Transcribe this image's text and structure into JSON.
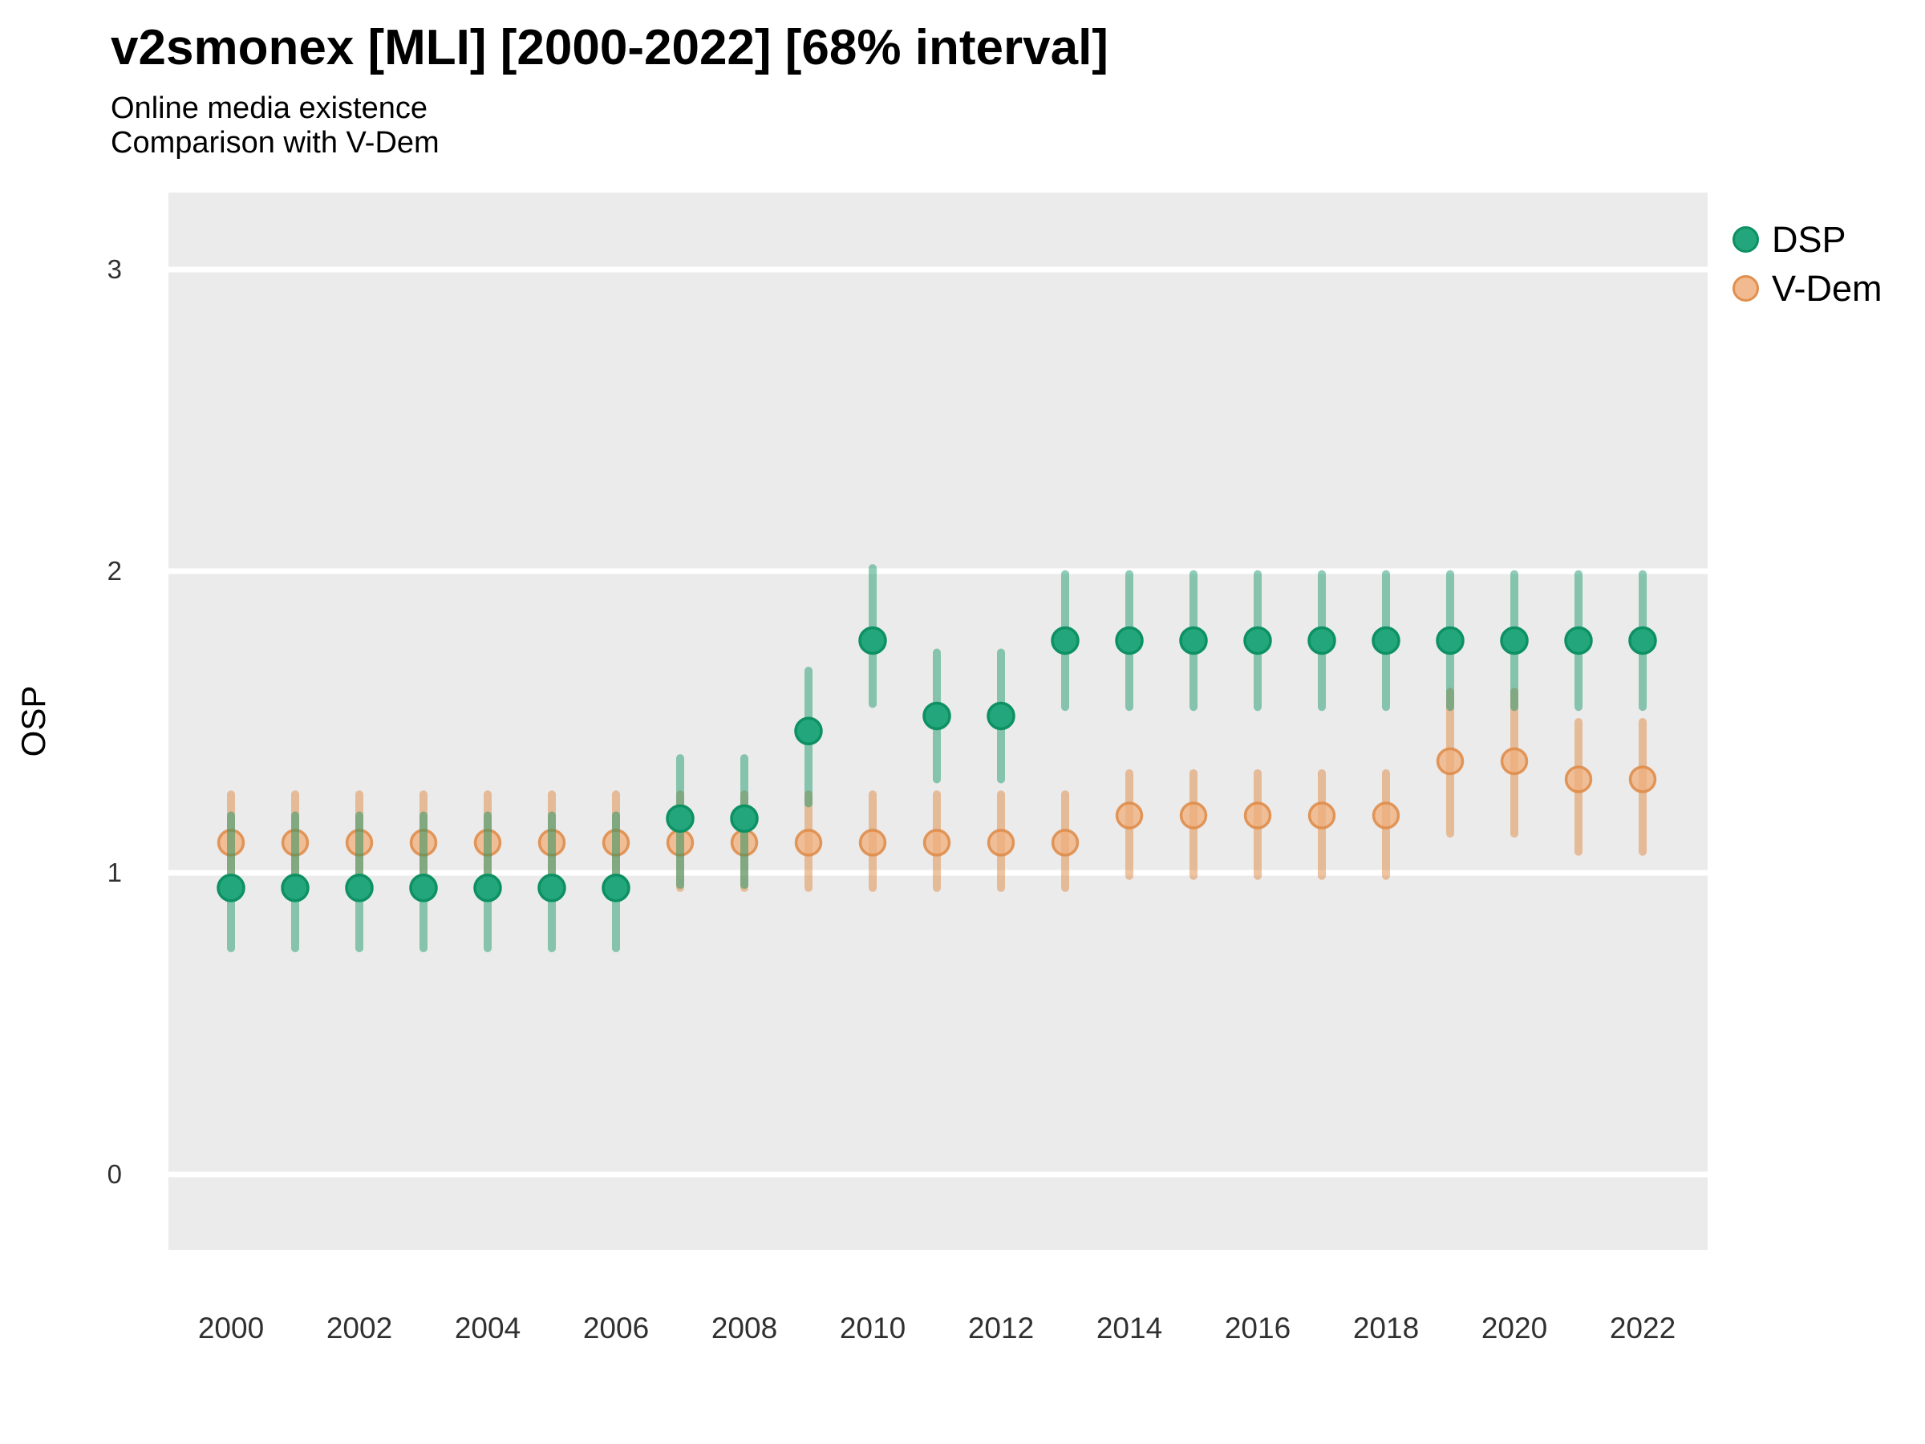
{
  "title": "v2smonex [MLI] [2000-2022] [68% interval]",
  "subtitle1": "Online media existence",
  "subtitle2": "Comparison with V-Dem",
  "ylabel": "OSP",
  "legend": {
    "items": [
      {
        "label": "DSP",
        "fill": "#23A67C",
        "stroke": "#0D9163"
      },
      {
        "label": "V-Dem",
        "fill": "#F2BA90",
        "stroke": "#E0904E"
      }
    ]
  },
  "colors": {
    "panel_bg": "#EBEBEB",
    "gridline": "#FFFFFF",
    "dsp_point_fill": "#23A67C",
    "dsp_point_stroke": "#0D9163",
    "dsp_bar": "rgba(20,150,105,0.48)",
    "vdem_point_fill": "#F0AF7E",
    "vdem_point_stroke": "#DE8A45",
    "vdem_bar": "rgba(224,138,68,0.5)"
  },
  "chart_data": {
    "type": "scatter",
    "title": "v2smonex [MLI] [2000-2022] [68% interval]",
    "subtitle": [
      "Online media existence",
      "Comparison with V-Dem"
    ],
    "xlabel": "",
    "ylabel": "OSP",
    "interval": "68%",
    "grid": "horizontal-major-only",
    "legend_position": "right-top",
    "x": [
      2000,
      2001,
      2002,
      2003,
      2004,
      2005,
      2006,
      2007,
      2008,
      2009,
      2010,
      2011,
      2012,
      2013,
      2014,
      2015,
      2016,
      2017,
      2018,
      2019,
      2020,
      2021,
      2022
    ],
    "xticks": [
      2000,
      2002,
      2004,
      2006,
      2008,
      2010,
      2012,
      2014,
      2016,
      2018,
      2020,
      2022
    ],
    "yticks": [
      0,
      1,
      2,
      3
    ],
    "ylim": [
      -0.25,
      3.26
    ],
    "xlim": [
      1999,
      2023
    ],
    "series": [
      {
        "name": "DSP",
        "values": [
          0.95,
          0.95,
          0.95,
          0.95,
          0.95,
          0.95,
          0.95,
          1.18,
          1.18,
          1.47,
          1.77,
          1.52,
          1.52,
          1.77,
          1.77,
          1.77,
          1.77,
          1.77,
          1.77,
          1.77,
          1.77,
          1.77,
          1.77
        ],
        "lo": [
          0.75,
          0.75,
          0.75,
          0.75,
          0.75,
          0.75,
          0.75,
          0.96,
          0.96,
          1.23,
          1.56,
          1.31,
          1.31,
          1.55,
          1.55,
          1.55,
          1.55,
          1.55,
          1.55,
          1.55,
          1.55,
          1.55,
          1.55
        ],
        "hi": [
          1.19,
          1.19,
          1.19,
          1.19,
          1.19,
          1.19,
          1.19,
          1.38,
          1.38,
          1.67,
          2.01,
          1.73,
          1.73,
          1.99,
          1.99,
          1.99,
          1.99,
          1.99,
          1.99,
          1.99,
          1.99,
          1.99,
          1.99
        ]
      },
      {
        "name": "V-Dem",
        "values": [
          1.1,
          1.1,
          1.1,
          1.1,
          1.1,
          1.1,
          1.1,
          1.1,
          1.1,
          1.1,
          1.1,
          1.1,
          1.1,
          1.1,
          1.19,
          1.19,
          1.19,
          1.19,
          1.19,
          1.37,
          1.37,
          1.31,
          1.31
        ],
        "lo": [
          0.95,
          0.95,
          0.95,
          0.95,
          0.95,
          0.95,
          0.95,
          0.95,
          0.95,
          0.95,
          0.95,
          0.95,
          0.95,
          0.95,
          0.99,
          0.99,
          0.99,
          0.99,
          0.99,
          1.13,
          1.13,
          1.07,
          1.07
        ],
        "hi": [
          1.26,
          1.26,
          1.26,
          1.26,
          1.26,
          1.26,
          1.26,
          1.26,
          1.26,
          1.26,
          1.26,
          1.26,
          1.26,
          1.26,
          1.33,
          1.33,
          1.33,
          1.33,
          1.33,
          1.6,
          1.6,
          1.5,
          1.5
        ]
      }
    ]
  }
}
